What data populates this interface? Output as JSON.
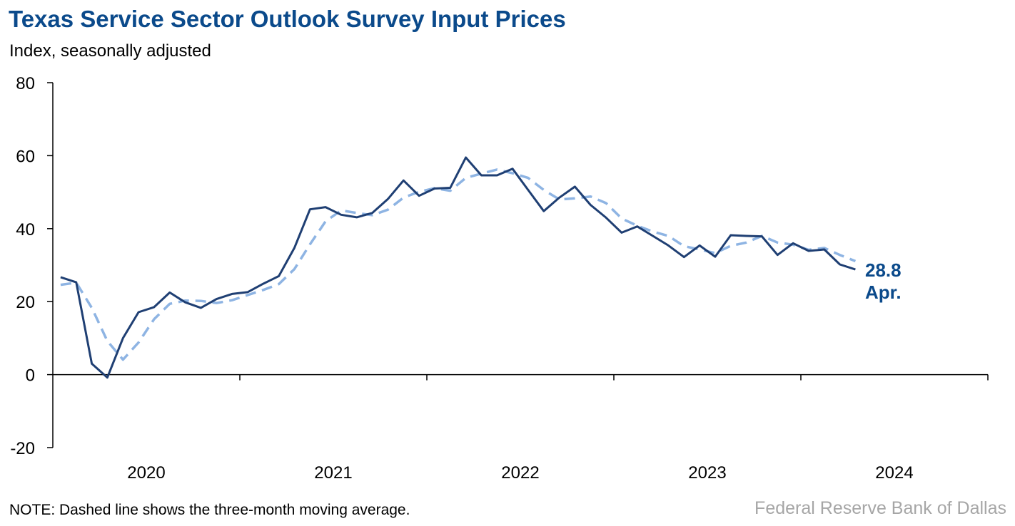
{
  "title": "Texas Service Sector Outlook Survey Input Prices",
  "subtitle": "Index, seasonally adjusted",
  "note": "NOTE: Dashed line shows the three-month moving average.",
  "source": "Federal Reserve Bank of Dallas",
  "colors": {
    "title": "#0b4a8b",
    "series_main": "#1f3f73",
    "series_ma": "#8eb4e3",
    "annotation": "#0b4a8b",
    "source": "#a6a6a6"
  },
  "chart_data": {
    "type": "line",
    "ylabel": "Index, seasonally adjusted",
    "ylim": [
      -20,
      80
    ],
    "yticks": [
      -20,
      0,
      20,
      40,
      60,
      80
    ],
    "x_category_labels": [
      "2020",
      "2021",
      "2022",
      "2023",
      "2024"
    ],
    "x_start": "2020-01",
    "x_end_axis": "2024-12",
    "grid": false,
    "legend": "none",
    "series": [
      {
        "style": "solid",
        "x": [
          "2020-01",
          "2020-02",
          "2020-03",
          "2020-04",
          "2020-05",
          "2020-06",
          "2020-07",
          "2020-08",
          "2020-09",
          "2020-10",
          "2020-11",
          "2020-12",
          "2021-01",
          "2021-02",
          "2021-03",
          "2021-04",
          "2021-05",
          "2021-06",
          "2021-07",
          "2021-08",
          "2021-09",
          "2021-10",
          "2021-11",
          "2021-12",
          "2022-01",
          "2022-02",
          "2022-03",
          "2022-04",
          "2022-05",
          "2022-06",
          "2022-07",
          "2022-08",
          "2022-09",
          "2022-10",
          "2022-11",
          "2022-12",
          "2023-01",
          "2023-02",
          "2023-03",
          "2023-04",
          "2023-05",
          "2023-06",
          "2023-07",
          "2023-08",
          "2023-09",
          "2023-10",
          "2023-11",
          "2023-12",
          "2024-01",
          "2024-02",
          "2024-03",
          "2024-04"
        ],
        "values": [
          26.7,
          25.3,
          3.0,
          -0.8,
          10.0,
          17.1,
          18.5,
          22.5,
          19.8,
          18.3,
          20.7,
          22.1,
          22.6,
          24.9,
          27.0,
          34.7,
          45.3,
          45.9,
          43.8,
          43.1,
          44.3,
          48.1,
          53.2,
          49.0,
          51.0,
          51.2,
          59.5,
          54.6,
          54.6,
          56.4,
          50.6,
          44.8,
          48.5,
          51.5,
          46.5,
          43.0,
          38.9,
          40.6,
          38.0,
          35.4,
          32.2,
          35.4,
          32.3,
          38.2,
          38.0,
          37.9,
          32.8,
          36.0,
          33.9,
          34.3,
          30.2,
          28.8
        ]
      },
      {
        "style": "dashed",
        "x": [
          "2020-01",
          "2020-02",
          "2020-03",
          "2020-04",
          "2020-05",
          "2020-06",
          "2020-07",
          "2020-08",
          "2020-09",
          "2020-10",
          "2020-11",
          "2020-12",
          "2021-01",
          "2021-02",
          "2021-03",
          "2021-04",
          "2021-05",
          "2021-06",
          "2021-07",
          "2021-08",
          "2021-09",
          "2021-10",
          "2021-11",
          "2021-12",
          "2022-01",
          "2022-02",
          "2022-03",
          "2022-04",
          "2022-05",
          "2022-06",
          "2022-07",
          "2022-08",
          "2022-09",
          "2022-10",
          "2022-11",
          "2022-12",
          "2023-01",
          "2023-02",
          "2023-03",
          "2023-04",
          "2023-05",
          "2023-06",
          "2023-07",
          "2023-08",
          "2023-09",
          "2023-10",
          "2023-11",
          "2023-12",
          "2024-01",
          "2024-02",
          "2024-03",
          "2024-04"
        ],
        "values": [
          24.6,
          25.2,
          18.3,
          9.2,
          4.1,
          8.8,
          15.2,
          19.4,
          20.3,
          20.2,
          19.6,
          20.4,
          21.8,
          23.2,
          24.8,
          28.9,
          35.7,
          42.0,
          45.0,
          44.3,
          43.7,
          45.2,
          48.5,
          50.1,
          51.1,
          50.4,
          53.9,
          55.1,
          56.2,
          55.2,
          53.9,
          50.6,
          48.0,
          48.3,
          48.8,
          47.0,
          42.8,
          40.8,
          39.2,
          38.0,
          35.2,
          34.3,
          33.3,
          35.3,
          36.2,
          38.0,
          36.2,
          35.6,
          34.2,
          34.7,
          32.8,
          31.1
        ]
      }
    ],
    "annotation": {
      "value": "28.8",
      "label": "Apr."
    }
  }
}
